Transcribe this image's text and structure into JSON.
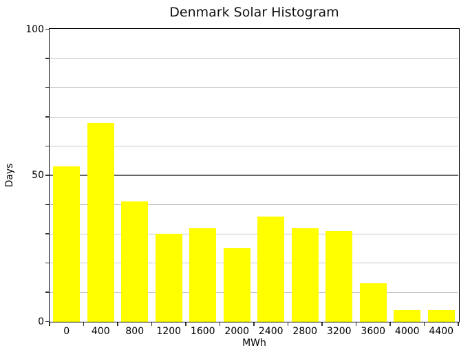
{
  "chart_data": {
    "type": "bar",
    "subtype": "histogram",
    "title": "Denmark Solar Histogram",
    "xlabel": "MWh",
    "ylabel": "Days",
    "categories": [
      "0",
      "400",
      "800",
      "1200",
      "1600",
      "2000",
      "2400",
      "2800",
      "3200",
      "3600",
      "4000",
      "4400"
    ],
    "values": [
      53,
      68,
      41,
      30,
      32,
      25,
      36,
      32,
      31,
      13,
      4,
      4
    ],
    "bin_width_mwh": 400,
    "ylim": [
      0,
      100
    ],
    "ytick_labels": [
      "0",
      "50",
      "100"
    ],
    "ytick_label_values": [
      0,
      50,
      100
    ],
    "grid_step": 10,
    "grid_emphasized_at": 50,
    "legend": "none",
    "colors": {
      "bar": "#ffff00",
      "grid": "#c6c6c6",
      "grid_major": "#666666",
      "spine": "#000000",
      "text": "#111111"
    }
  }
}
